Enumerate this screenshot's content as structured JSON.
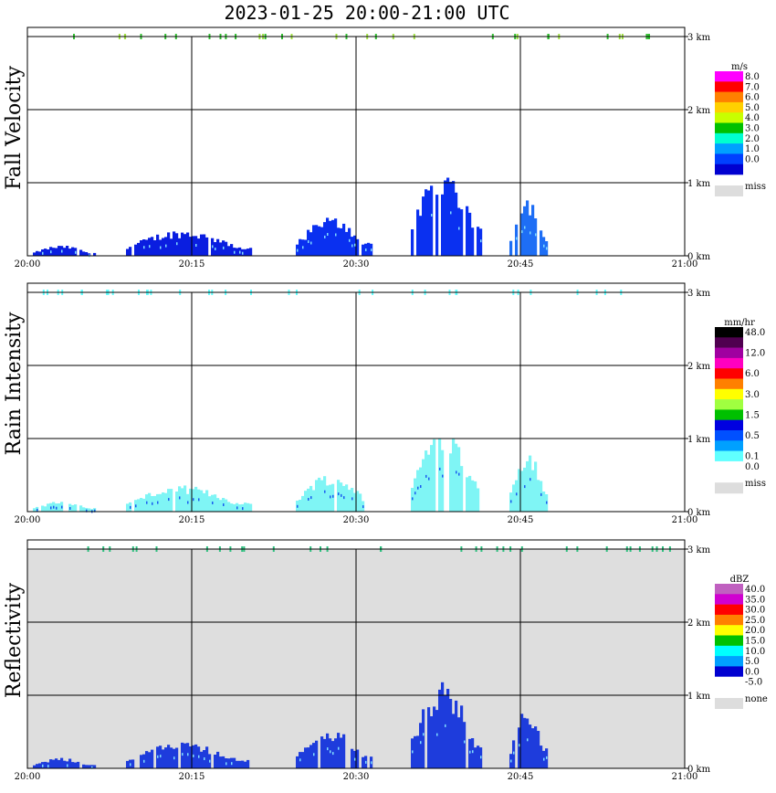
{
  "title": "2023-01-25  20:00-21:00 UTC",
  "chart_data": [
    {
      "type": "heatmap",
      "ylabel": "Fall Velocity",
      "unit": "m/s",
      "background": "#ffffff",
      "x_ticks": [
        "20:00",
        "20:15",
        "20:30",
        "20:45",
        "21:00"
      ],
      "y_ticks": [
        "0 km",
        "1 km",
        "2 km",
        "3 km"
      ],
      "legend": [
        {
          "label": "8.0",
          "color": "#ff00ff"
        },
        {
          "label": "7.0",
          "color": "#ff0000"
        },
        {
          "label": "6.0",
          "color": "#ff8000"
        },
        {
          "label": "5.0",
          "color": "#ffd000"
        },
        {
          "label": "4.0",
          "color": "#c8ff00"
        },
        {
          "label": "3.0",
          "color": "#00c000"
        },
        {
          "label": "2.0",
          "color": "#00ffd0"
        },
        {
          "label": "1.0",
          "color": "#00a0ff"
        },
        {
          "label": "0.0",
          "color": "#0040ff"
        },
        {
          "label": "",
          "color": "#0000d0"
        }
      ],
      "miss_label": "miss",
      "miss_color": "#dddddd",
      "bands": [
        {
          "t0": 0.5,
          "t1": 6.2,
          "h": 0.12,
          "color": "#0a1ee0"
        },
        {
          "t0": 9.0,
          "t1": 20.5,
          "h": 0.3,
          "color": "#0a1ee0"
        },
        {
          "t0": 24.5,
          "t1": 31.5,
          "h": 0.45,
          "color": "#0a30f0"
        },
        {
          "t0": 35.0,
          "t1": 41.5,
          "h": 1.0,
          "color": "#0a30f0"
        },
        {
          "t0": 44.0,
          "t1": 47.5,
          "h": 0.7,
          "color": "#1e6ef5"
        }
      ]
    },
    {
      "type": "heatmap",
      "ylabel": "Rain Intensity",
      "unit": "mm/hr",
      "background": "#ffffff",
      "x_ticks": [
        "20:00",
        "20:15",
        "20:30",
        "20:45",
        "21:00"
      ],
      "y_ticks": [
        "0 km",
        "1 km",
        "2 km",
        "3 km"
      ],
      "legend": [
        {
          "label": "48.0",
          "color": "#000000"
        },
        {
          "label": "",
          "color": "#500050"
        },
        {
          "label": "12.0",
          "color": "#a000a0"
        },
        {
          "label": "",
          "color": "#ff00c0"
        },
        {
          "label": "6.0",
          "color": "#ff0000"
        },
        {
          "label": "",
          "color": "#ff8000"
        },
        {
          "label": "3.0",
          "color": "#ffff00"
        },
        {
          "label": "",
          "color": "#a0ff40"
        },
        {
          "label": "1.5",
          "color": "#00c000"
        },
        {
          "label": "",
          "color": "#0000e0"
        },
        {
          "label": "0.5",
          "color": "#0050ff"
        },
        {
          "label": "",
          "color": "#00a0ff"
        },
        {
          "label": "0.1",
          "color": "#60ffff"
        },
        {
          "label": "0.0",
          "color": "#ffffff"
        }
      ],
      "miss_label": "miss",
      "miss_color": "#dddddd",
      "bands": [
        {
          "t0": 0.5,
          "t1": 6.2,
          "h": 0.12,
          "color": "#7ff5f5"
        },
        {
          "t0": 9.0,
          "t1": 20.5,
          "h": 0.3,
          "color": "#7ff5f5"
        },
        {
          "t0": 24.5,
          "t1": 31.5,
          "h": 0.45,
          "color": "#7ff5f5"
        },
        {
          "t0": 35.0,
          "t1": 41.5,
          "h": 1.0,
          "color": "#7ff5f5"
        },
        {
          "t0": 44.0,
          "t1": 47.5,
          "h": 0.7,
          "color": "#7ff5f5"
        }
      ]
    },
    {
      "type": "heatmap",
      "ylabel": "Reflectivity",
      "unit": "dBZ",
      "background": "#dedede",
      "x_ticks": [
        "20:00",
        "20:15",
        "20:30",
        "20:45",
        "21:00"
      ],
      "y_ticks": [
        "0 km",
        "1 km",
        "2 km",
        "3 km"
      ],
      "legend": [
        {
          "label": "40.0",
          "color": "#c060c0"
        },
        {
          "label": "35.0",
          "color": "#d000d0"
        },
        {
          "label": "30.0",
          "color": "#ff0000"
        },
        {
          "label": "25.0",
          "color": "#ff8000"
        },
        {
          "label": "20.0",
          "color": "#ffff00"
        },
        {
          "label": "15.0",
          "color": "#00c000"
        },
        {
          "label": "10.0",
          "color": "#00ffff"
        },
        {
          "label": "5.0",
          "color": "#00a0ff"
        },
        {
          "label": "0.0",
          "color": "#0000d0"
        },
        {
          "label": "-5.0",
          "color": "#ffffff"
        }
      ],
      "miss_label": "none",
      "miss_color": "#dddddd",
      "bands": [
        {
          "t0": 0.5,
          "t1": 6.2,
          "h": 0.12,
          "color": "#1e3cdc"
        },
        {
          "t0": 9.0,
          "t1": 20.5,
          "h": 0.3,
          "color": "#1e3cdc"
        },
        {
          "t0": 24.5,
          "t1": 31.5,
          "h": 0.45,
          "color": "#1e3cdc"
        },
        {
          "t0": 35.0,
          "t1": 41.5,
          "h": 1.0,
          "color": "#1e3cdc"
        },
        {
          "t0": 44.0,
          "t1": 47.5,
          "h": 0.7,
          "color": "#1e3cdc"
        }
      ]
    }
  ]
}
